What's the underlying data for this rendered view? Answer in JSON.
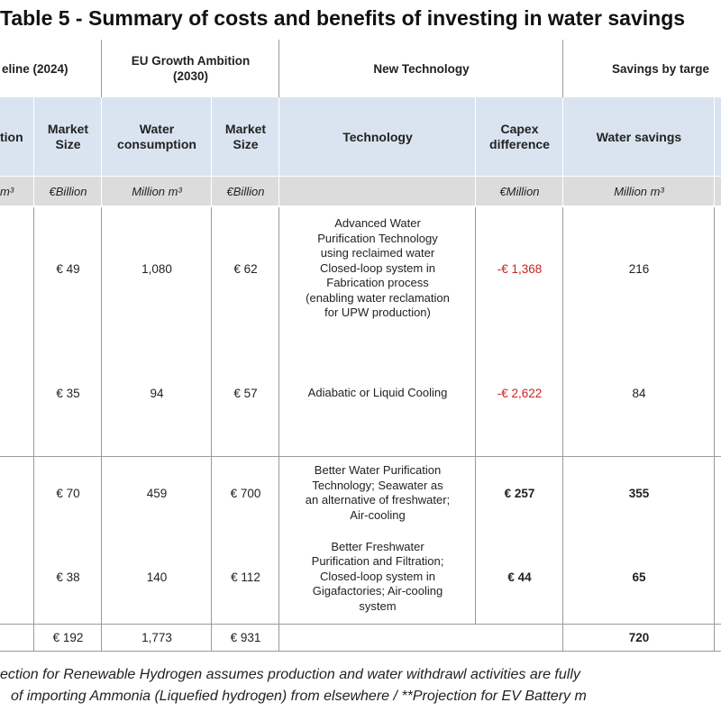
{
  "title": "Table 5 - Summary of costs and benefits of investing in water savings",
  "groups": {
    "baseline": "eline (2024)",
    "eu_growth_line1": "EU Growth Ambition",
    "eu_growth_line2": "(2030)",
    "new_tech": "New Technology",
    "savings": "Savings by targe"
  },
  "columns": {
    "c0": "tion",
    "c1_line1": "Market",
    "c1_line2": "Size",
    "c2_line1": "Water",
    "c2_line2": "consumption",
    "c3_line1": "Market",
    "c3_line2": "Size",
    "c4": "Technology",
    "c5_line1": "Capex",
    "c5_line2": "difference",
    "c6": "Water savings"
  },
  "units": {
    "c0": "m³",
    "c1": "€Billion",
    "c2": "Million m³",
    "c3": "€Billion",
    "c4": "",
    "c5": "€Million",
    "c6": "Million m³"
  },
  "rows": [
    {
      "market_2024": "€ 49",
      "water_2030": "1,080",
      "market_2030": "€ 62",
      "tech_lines": [
        "Advanced Water",
        "Purification Technology",
        "using reclaimed water",
        "Closed-loop system in",
        "Fabrication process",
        "(enabling water reclamation",
        "for UPW production)"
      ],
      "capex": "-€ 1,368",
      "savings": "216"
    },
    {
      "market_2024": "€ 35",
      "water_2030": "94",
      "market_2030": "€ 57",
      "tech_lines": [
        "Adiabatic or Liquid Cooling"
      ],
      "capex": "-€ 2,622",
      "savings": "84"
    },
    {
      "market_2024": "€ 70",
      "water_2030": "459",
      "market_2030": "€ 700",
      "tech_lines": [
        "Better Water Purification",
        "Technology; Seawater as",
        "an alternative of freshwater;",
        "Air-cooling"
      ],
      "capex": "€ 257",
      "savings": "355"
    },
    {
      "market_2024": "€ 38",
      "water_2030": "140",
      "market_2030": "€ 112",
      "tech_lines": [
        "Better Freshwater",
        "Purification and Filtration;",
        "Closed-loop system in",
        "Gigafactories; Air-cooling",
        "system"
      ],
      "capex": "€ 44",
      "savings": "65"
    }
  ],
  "total": {
    "market_2024": "€ 192",
    "water_2030": "1,773",
    "market_2030": "€ 931",
    "savings": "720"
  },
  "footnote": {
    "line1": "ection for Renewable Hydrogen assumes production and water withdrawl activities are fully",
    "line2": "of importing Ammonia (Liquefied hydrogen) from elsewhere / **Projection for EV Battery m"
  }
}
